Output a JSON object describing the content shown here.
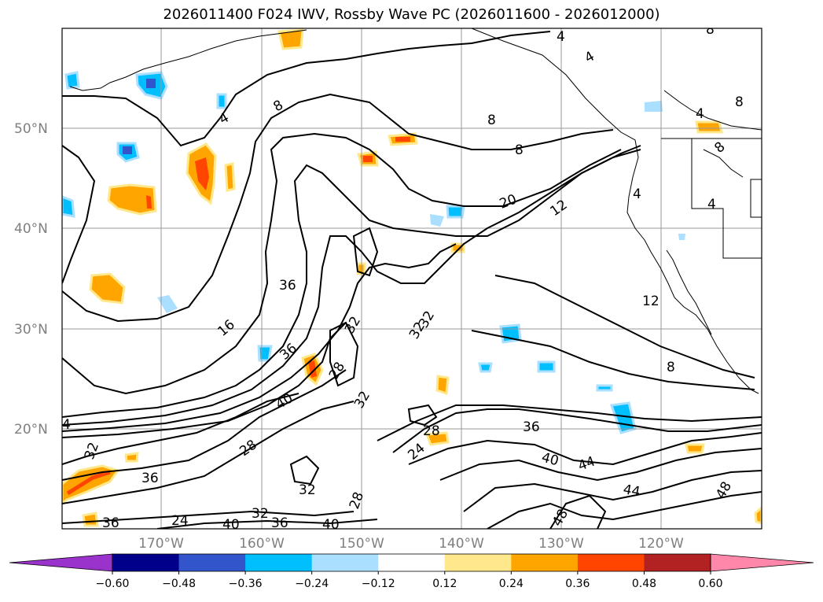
{
  "title": "2026011400 F024 IWV, Rossby Wave PC (2026011600 - 2026012000)",
  "map": {
    "lat_labels": [
      "50°N",
      "40°N",
      "30°N",
      "20°N"
    ],
    "lon_labels": [
      "170°W",
      "160°W",
      "150°W",
      "140°W",
      "130°W",
      "120°W"
    ]
  },
  "contour_labels": [
    "4",
    "4",
    "4",
    "4",
    "4",
    "4",
    "8",
    "8",
    "8",
    "8",
    "8",
    "8",
    "12",
    "12",
    "16",
    "20",
    "24",
    "24",
    "28",
    "28",
    "28",
    "28",
    "32",
    "32",
    "32",
    "32",
    "32",
    "32",
    "32",
    "36",
    "36",
    "36",
    "36",
    "36",
    "36",
    "40",
    "40",
    "40",
    "40",
    "44",
    "44",
    "48",
    "48",
    "4",
    "8"
  ],
  "colorbar": {
    "ticks": [
      "−0.60",
      "−0.48",
      "−0.36",
      "−0.24",
      "−0.12",
      "0.12",
      "0.24",
      "0.36",
      "0.48",
      "0.60"
    ],
    "colors": [
      "#9933cc",
      "#00008b",
      "#3355cc",
      "#00bfff",
      "#aadfff",
      "#ffffff",
      "#ffe88c",
      "#ffa500",
      "#ff4500",
      "#b22222",
      "#ff88aa"
    ]
  }
}
